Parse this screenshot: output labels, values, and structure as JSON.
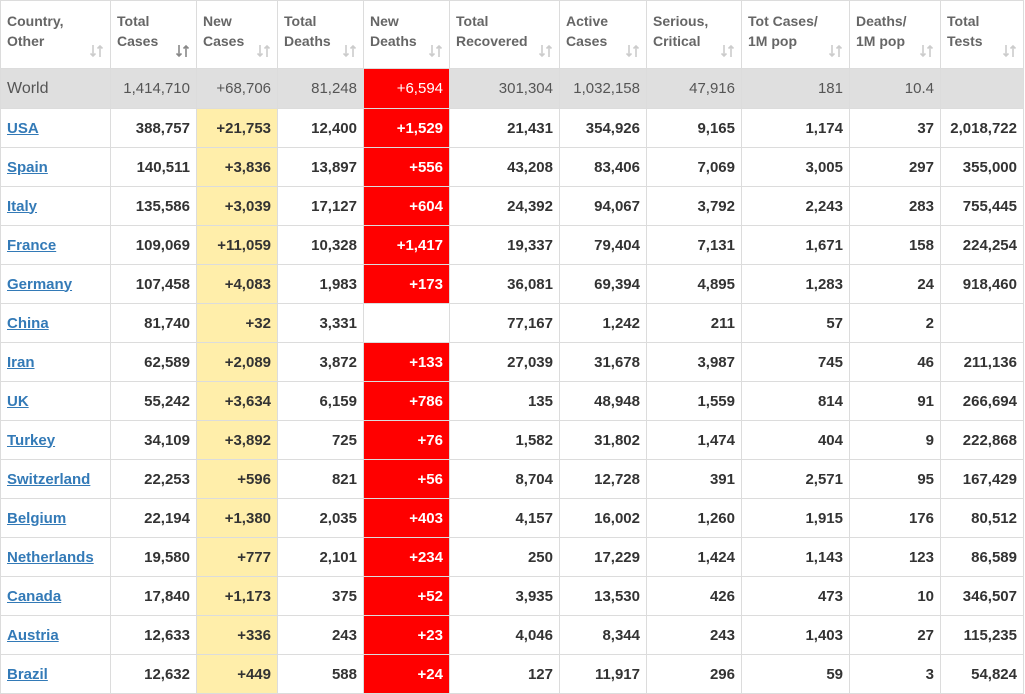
{
  "table": {
    "headers": [
      [
        "Country,",
        "Other"
      ],
      [
        "Total",
        "Cases"
      ],
      [
        "New",
        "Cases"
      ],
      [
        "Total",
        "Deaths"
      ],
      [
        "New",
        "Deaths"
      ],
      [
        "Total",
        "Recovered"
      ],
      [
        "Active",
        "Cases"
      ],
      [
        "Serious,",
        "Critical"
      ],
      [
        "Tot Cases/",
        "1M pop"
      ],
      [
        "Deaths/",
        "1M pop"
      ],
      [
        "Total",
        "Tests"
      ]
    ],
    "world": [
      "World",
      "1,414,710",
      "+68,706",
      "81,248",
      "+6,594",
      "301,304",
      "1,032,158",
      "47,916",
      "181",
      "10.4",
      null
    ],
    "rows": [
      [
        "USA",
        "388,757",
        "+21,753",
        "12,400",
        "+1,529",
        "21,431",
        "354,926",
        "9,165",
        "1,174",
        "37",
        "2,018,722"
      ],
      [
        "Spain",
        "140,511",
        "+3,836",
        "13,897",
        "+556",
        "43,208",
        "83,406",
        "7,069",
        "3,005",
        "297",
        "355,000"
      ],
      [
        "Italy",
        "135,586",
        "+3,039",
        "17,127",
        "+604",
        "24,392",
        "94,067",
        "3,792",
        "2,243",
        "283",
        "755,445"
      ],
      [
        "France",
        "109,069",
        "+11,059",
        "10,328",
        "+1,417",
        "19,337",
        "79,404",
        "7,131",
        "1,671",
        "158",
        "224,254"
      ],
      [
        "Germany",
        "107,458",
        "+4,083",
        "1,983",
        "+173",
        "36,081",
        "69,394",
        "4,895",
        "1,283",
        "24",
        "918,460"
      ],
      [
        "China",
        "81,740",
        "+32",
        "3,331",
        null,
        "77,167",
        "1,242",
        "211",
        "57",
        "2",
        null
      ],
      [
        "Iran",
        "62,589",
        "+2,089",
        "3,872",
        "+133",
        "27,039",
        "31,678",
        "3,987",
        "745",
        "46",
        "211,136"
      ],
      [
        "UK",
        "55,242",
        "+3,634",
        "6,159",
        "+786",
        "135",
        "48,948",
        "1,559",
        "814",
        "91",
        "266,694"
      ],
      [
        "Turkey",
        "34,109",
        "+3,892",
        "725",
        "+76",
        "1,582",
        "31,802",
        "1,474",
        "404",
        "9",
        "222,868"
      ],
      [
        "Switzerland",
        "22,253",
        "+596",
        "821",
        "+56",
        "8,704",
        "12,728",
        "391",
        "2,571",
        "95",
        "167,429"
      ],
      [
        "Belgium",
        "22,194",
        "+1,380",
        "2,035",
        "+403",
        "4,157",
        "16,002",
        "1,260",
        "1,915",
        "176",
        "80,512"
      ],
      [
        "Netherlands",
        "19,580",
        "+777",
        "2,101",
        "+234",
        "250",
        "17,229",
        "1,424",
        "1,143",
        "123",
        "86,589"
      ],
      [
        "Canada",
        "17,840",
        "+1,173",
        "375",
        "+52",
        "3,935",
        "13,530",
        "426",
        "473",
        "10",
        "346,507"
      ],
      [
        "Austria",
        "12,633",
        "+336",
        "243",
        "+23",
        "4,046",
        "8,344",
        "243",
        "1,403",
        "27",
        "115,235"
      ],
      [
        "Brazil",
        "12,632",
        "+449",
        "588",
        "+24",
        "127",
        "11,917",
        "296",
        "59",
        "3",
        "54,824"
      ]
    ]
  }
}
